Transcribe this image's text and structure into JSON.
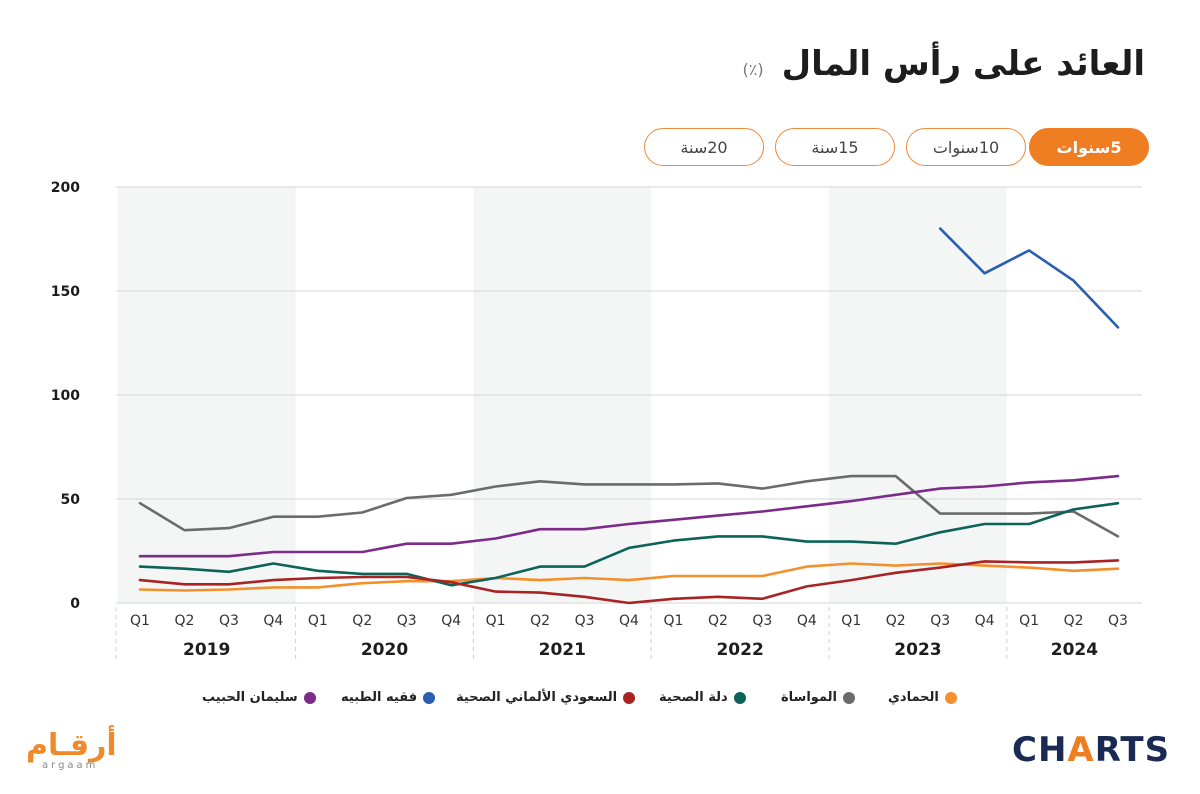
{
  "title": "العائد على رأس المال",
  "unit": "(٪)",
  "tabs": [
    {
      "label": "5سنوات",
      "active": true
    },
    {
      "label": "10سنوات",
      "active": false
    },
    {
      "label": "15سنة",
      "active": false
    },
    {
      "label": "20سنة",
      "active": false
    }
  ],
  "logos": {
    "left": "أرقـام",
    "left_sub": "argaam",
    "right_a": "CH",
    "right_b": "A",
    "right_c": "RTS"
  },
  "chart_data": {
    "type": "line",
    "ylim": [
      0,
      200
    ],
    "yticks": [
      0,
      50,
      100,
      150,
      200
    ],
    "categories": [
      "Q1",
      "Q2",
      "Q3",
      "Q4",
      "Q1",
      "Q2",
      "Q3",
      "Q4",
      "Q1",
      "Q2",
      "Q3",
      "Q4",
      "Q1",
      "Q2",
      "Q3",
      "Q4",
      "Q1",
      "Q2",
      "Q3",
      "Q4",
      "Q1",
      "Q2",
      "Q3"
    ],
    "years": [
      {
        "label": "2019",
        "start": 0,
        "end": 3
      },
      {
        "label": "2020",
        "start": 4,
        "end": 7
      },
      {
        "label": "2021",
        "start": 8,
        "end": 11
      },
      {
        "label": "2022",
        "start": 12,
        "end": 15
      },
      {
        "label": "2023",
        "start": 16,
        "end": 19
      },
      {
        "label": "2024",
        "start": 20,
        "end": 22
      }
    ],
    "grid": true,
    "legend_position": "bottom",
    "series": [
      {
        "name": "الحمادي",
        "color": "#f4902c",
        "values": [
          6.5,
          6,
          6.5,
          7.5,
          7.5,
          9.5,
          10.5,
          10.5,
          12,
          11,
          12,
          11,
          13,
          13,
          13,
          17.5,
          19,
          18,
          19,
          18,
          17,
          15.5,
          16.5
        ]
      },
      {
        "name": "المواساة",
        "color": "#6b6b6b",
        "values": [
          48,
          35,
          36,
          41.5,
          41.5,
          43.5,
          50.5,
          52,
          56,
          58.5,
          57,
          57,
          57,
          57.5,
          55,
          58.5,
          61,
          61,
          43,
          43,
          43,
          44,
          32
        ]
      },
      {
        "name": "دلة الصحية",
        "color": "#0d6359",
        "values": [
          17.5,
          16.5,
          15,
          19,
          15.5,
          14,
          14,
          8.5,
          12,
          17.5,
          17.5,
          26.5,
          30,
          32,
          32,
          29.5,
          29.5,
          28.5,
          34,
          38,
          38,
          45,
          48
        ]
      },
      {
        "name": "السعودي الألماني الصحية",
        "color": "#a82424",
        "values": [
          11,
          9,
          9,
          11,
          12,
          12.5,
          12.5,
          10,
          5.5,
          5,
          3,
          0,
          2,
          3,
          2,
          8,
          11,
          14.5,
          17,
          20,
          19.5,
          19.5,
          20.5
        ]
      },
      {
        "name": "فقيه الطبيه",
        "color": "#2b5db0",
        "values": [
          null,
          null,
          null,
          null,
          null,
          null,
          null,
          null,
          null,
          null,
          null,
          null,
          null,
          null,
          null,
          null,
          null,
          null,
          180,
          158.5,
          169.5,
          155,
          132.5
        ]
      },
      {
        "name": "سليمان الحبيب",
        "color": "#7d2b8b",
        "values": [
          22.5,
          22.5,
          22.5,
          24.5,
          24.5,
          24.5,
          28.5,
          28.5,
          31,
          35.5,
          35.5,
          38,
          40,
          42,
          44,
          46.5,
          49,
          52,
          55,
          56,
          58,
          59,
          61
        ]
      }
    ]
  }
}
